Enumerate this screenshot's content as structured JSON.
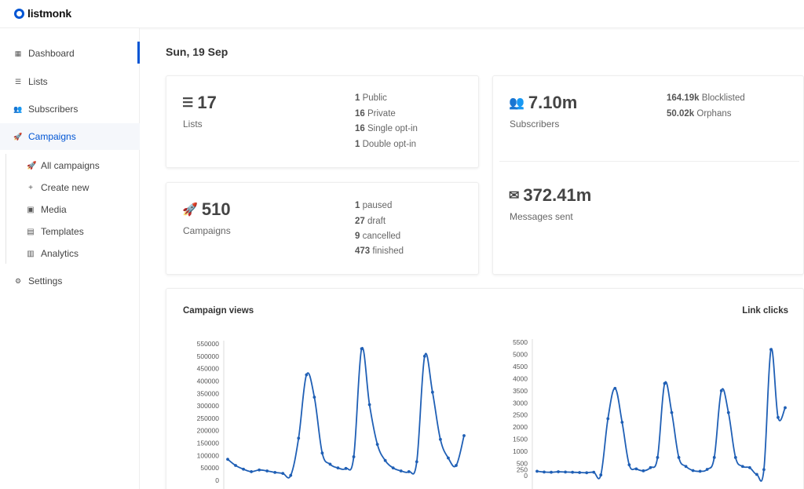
{
  "app": {
    "name": "listmonk"
  },
  "sidebar": {
    "items": [
      {
        "label": "Dashboard",
        "icon": "dashboard-icon"
      },
      {
        "label": "Lists",
        "icon": "list-icon"
      },
      {
        "label": "Subscribers",
        "icon": "users-icon"
      },
      {
        "label": "Campaigns",
        "icon": "rocket-icon"
      },
      {
        "label": "Settings",
        "icon": "gear-icon"
      }
    ],
    "campaigns_sub": [
      {
        "label": "All campaigns",
        "icon": "rocket-icon"
      },
      {
        "label": "Create new",
        "icon": "plus-icon"
      },
      {
        "label": "Media",
        "icon": "image-icon"
      },
      {
        "label": "Templates",
        "icon": "file-icon"
      },
      {
        "label": "Analytics",
        "icon": "bar-chart-icon"
      }
    ]
  },
  "main": {
    "date": "Sun, 19 Sep",
    "lists": {
      "count": "17",
      "label": "Lists",
      "stats": [
        {
          "value": "1",
          "label": "Public"
        },
        {
          "value": "16",
          "label": "Private"
        },
        {
          "value": "16",
          "label": "Single opt-in"
        },
        {
          "value": "1",
          "label": "Double opt-in"
        }
      ]
    },
    "campaigns": {
      "count": "510",
      "label": "Campaigns",
      "stats": [
        {
          "value": "1",
          "label": "paused"
        },
        {
          "value": "27",
          "label": "draft"
        },
        {
          "value": "9",
          "label": "cancelled"
        },
        {
          "value": "473",
          "label": "finished"
        }
      ]
    },
    "subscribers": {
      "count": "7.10m",
      "label": "Subscribers",
      "stats": [
        {
          "value": "164.19k",
          "label": "Blocklisted"
        },
        {
          "value": "50.02k",
          "label": "Orphans"
        }
      ]
    },
    "messages": {
      "count": "372.41m",
      "label": "Messages sent"
    }
  },
  "colors": {
    "accent": "#0055d4",
    "line": "#1f5fb5"
  },
  "chart_data": [
    {
      "type": "line",
      "title": "Campaign views",
      "ylim": [
        0,
        550000
      ],
      "yticks": [
        0,
        50000,
        100000,
        150000,
        200000,
        250000,
        300000,
        350000,
        400000,
        450000,
        500000,
        550000
      ],
      "x": [
        0,
        1,
        2,
        3,
        4,
        5,
        6,
        7,
        8,
        9,
        10,
        11,
        12,
        13,
        14,
        15,
        16,
        17,
        18,
        19,
        20,
        21,
        22,
        23,
        24,
        25,
        26,
        27,
        28,
        29,
        30
      ],
      "values": [
        85000,
        60000,
        45000,
        35000,
        42000,
        38000,
        32000,
        28000,
        20000,
        170000,
        425000,
        335000,
        110000,
        65000,
        50000,
        48000,
        95000,
        530000,
        305000,
        145000,
        80000,
        50000,
        38000,
        35000,
        75000,
        500000,
        355000,
        165000,
        90000,
        60000,
        180000
      ]
    },
    {
      "type": "line",
      "title": "Link clicks",
      "ylim": [
        0,
        5500
      ],
      "yticks": [
        0,
        250,
        500,
        1000,
        1500,
        2000,
        2500,
        3000,
        3500,
        4000,
        4500,
        5000,
        5500
      ],
      "x": [
        0,
        1,
        2,
        3,
        4,
        5,
        6,
        7,
        8,
        9,
        10,
        11,
        12,
        13,
        14,
        15,
        16,
        17,
        18,
        19,
        20,
        21,
        22,
        23,
        24,
        25,
        26,
        27,
        28,
        29,
        30,
        31,
        32,
        33,
        34,
        35
      ],
      "values": [
        180,
        150,
        140,
        160,
        150,
        140,
        130,
        120,
        140,
        30,
        2350,
        3600,
        2200,
        450,
        280,
        200,
        330,
        750,
        3800,
        2600,
        750,
        380,
        210,
        180,
        260,
        750,
        3500,
        2600,
        750,
        380,
        330,
        50,
        250,
        5200,
        2400,
        2800
      ]
    }
  ]
}
